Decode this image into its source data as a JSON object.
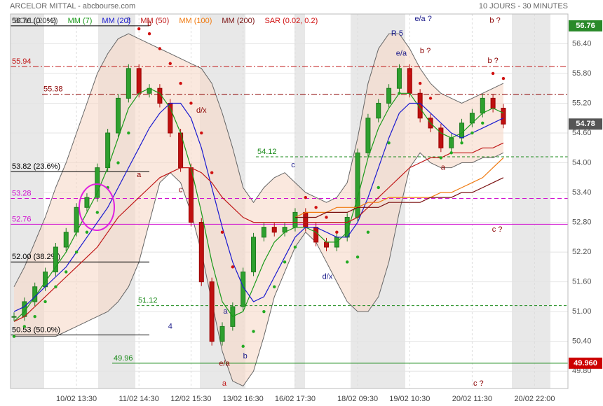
{
  "chart_data": {
    "type": "candlestick",
    "title": "ARCELOR MITTAL - abcbourse.com",
    "subtitle": "10 JOURS - 30 MINUTES",
    "categories": [
      null,
      null,
      null,
      null,
      null,
      null,
      "10/02 13:30",
      null,
      null,
      null,
      null,
      null,
      "11/02 14:30",
      null,
      null,
      null,
      null,
      "12/02 15:30",
      null,
      null,
      null,
      null,
      "13/02 16:30",
      null,
      null,
      null,
      null,
      "16/02 17:30",
      null,
      null,
      null,
      null,
      null,
      "18/02 09:30",
      null,
      null,
      null,
      null,
      "19/02 10:30",
      null,
      null,
      null,
      null,
      null,
      "20/02 11:30",
      null,
      null,
      null,
      null,
      null,
      "20/02 22:00",
      null
    ],
    "price": [
      50.9,
      51.2,
      51.5,
      51.8,
      52.3,
      52.6,
      53.1,
      53.3,
      53.9,
      54.6,
      55.3,
      55.9,
      55.4,
      55.5,
      55.2,
      54.6,
      53.9,
      52.8,
      51.6,
      50.4,
      50.7,
      51.1,
      51.8,
      52.5,
      52.7,
      52.6,
      52.7,
      53.0,
      52.7,
      52.4,
      52.3,
      52.5,
      52.9,
      54.2,
      54.9,
      55.2,
      55.5,
      55.9,
      55.4,
      54.9,
      54.7,
      54.3,
      54.5,
      54.8,
      55.0,
      55.3,
      55.1,
      54.78,
      null,
      null,
      null,
      null
    ],
    "series": [
      {
        "name": "BOLL (20, 2)",
        "color": "#666666",
        "upper": [
          51.5,
          51.9,
          52.4,
          52.9,
          53.5,
          54.0,
          54.6,
          55.2,
          55.8,
          56.2,
          56.5,
          56.6,
          56.5,
          56.4,
          56.3,
          56.2,
          56.1,
          56.0,
          55.9,
          55.6,
          55.0,
          54.3,
          53.5,
          53.2,
          53.5,
          53.7,
          53.8,
          53.6,
          53.4,
          53.3,
          53.2,
          53.3,
          53.6,
          54.5,
          55.6,
          56.3,
          56.6,
          56.6,
          56.3,
          55.9,
          55.6,
          55.4,
          55.3,
          55.2,
          55.3,
          55.4,
          55.5,
          55.6,
          null,
          null,
          null,
          null
        ],
        "lower": [
          50.5,
          50.5,
          50.5,
          50.5,
          50.5,
          50.6,
          50.7,
          50.8,
          50.9,
          51.0,
          51.2,
          51.5,
          52.0,
          52.8,
          53.6,
          53.8,
          53.6,
          53.0,
          52.2,
          51.2,
          50.2,
          49.6,
          49.5,
          49.8,
          50.5,
          51.3,
          51.8,
          52.3,
          52.6,
          52.4,
          52.0,
          51.6,
          51.2,
          51.0,
          51.0,
          51.3,
          52.0,
          53.0,
          53.9,
          54.2,
          54.0,
          53.9,
          53.9,
          54.0,
          54.0,
          54.1,
          54.1,
          54.2,
          null,
          null,
          null,
          null
        ]
      },
      {
        "name": "MM (7)",
        "color": "#1a9a1a",
        "values": [
          50.8,
          51.0,
          51.3,
          51.6,
          51.9,
          52.2,
          52.6,
          53.0,
          53.4,
          53.9,
          54.5,
          55.1,
          55.4,
          55.5,
          55.4,
          55.1,
          54.6,
          53.9,
          53.0,
          52.0,
          51.2,
          50.9,
          51.0,
          51.5,
          52.0,
          52.4,
          52.6,
          52.7,
          52.7,
          52.6,
          52.4,
          52.4,
          52.6,
          53.3,
          54.1,
          54.7,
          55.1,
          55.4,
          55.4,
          55.1,
          54.8,
          54.6,
          54.5,
          54.6,
          54.8,
          55.0,
          55.1,
          55.0,
          null,
          null,
          null,
          null
        ]
      },
      {
        "name": "MM (20)",
        "color": "#1a1ad0",
        "values": [
          51.0,
          51.1,
          51.3,
          51.5,
          51.7,
          51.9,
          52.2,
          52.5,
          52.8,
          53.1,
          53.5,
          53.9,
          54.3,
          54.7,
          55.0,
          55.2,
          55.2,
          54.9,
          54.3,
          53.5,
          52.7,
          52.0,
          51.5,
          51.2,
          51.3,
          51.7,
          52.1,
          52.5,
          52.7,
          52.7,
          52.6,
          52.5,
          52.5,
          52.8,
          53.3,
          53.9,
          54.5,
          55.0,
          55.2,
          55.2,
          55.0,
          54.8,
          54.6,
          54.5,
          54.6,
          54.7,
          54.8,
          54.9,
          null,
          null,
          null,
          null
        ]
      },
      {
        "name": "MM (50)",
        "color": "#c01818",
        "values": [
          50.8,
          50.9,
          51.1,
          51.3,
          51.5,
          51.7,
          51.9,
          52.1,
          52.3,
          52.6,
          52.9,
          53.1,
          53.3,
          53.5,
          53.7,
          53.8,
          53.9,
          53.9,
          53.8,
          53.6,
          53.3,
          53.1,
          52.9,
          52.8,
          52.8,
          52.8,
          52.8,
          52.8,
          52.8,
          52.8,
          52.8,
          52.8,
          52.8,
          52.9,
          53.1,
          53.3,
          53.5,
          53.7,
          53.9,
          54.0,
          54.1,
          54.1,
          54.2,
          54.2,
          54.2,
          54.3,
          54.3,
          54.4,
          null,
          null,
          null,
          null
        ]
      },
      {
        "name": "MM (100)",
        "color": "#f07a10",
        "values": [
          null,
          null,
          null,
          null,
          null,
          null,
          null,
          null,
          null,
          null,
          null,
          null,
          null,
          null,
          null,
          null,
          null,
          null,
          null,
          null,
          null,
          null,
          null,
          null,
          null,
          null,
          null,
          52.9,
          53.0,
          53.0,
          53.0,
          53.1,
          53.1,
          53.1,
          53.2,
          53.2,
          53.3,
          53.3,
          53.3,
          53.3,
          53.3,
          53.4,
          53.4,
          53.5,
          53.6,
          53.7,
          53.9,
          54.1,
          null,
          null,
          null,
          null
        ]
      },
      {
        "name": "MM (200)",
        "color": "#7a1010",
        "values": [
          null,
          null,
          null,
          null,
          null,
          null,
          null,
          null,
          null,
          null,
          null,
          null,
          null,
          null,
          null,
          null,
          null,
          null,
          null,
          null,
          null,
          null,
          null,
          null,
          null,
          null,
          null,
          52.9,
          52.9,
          52.9,
          53.0,
          53.0,
          53.0,
          53.1,
          53.1,
          53.1,
          53.2,
          53.2,
          53.2,
          53.2,
          53.3,
          53.3,
          53.3,
          53.4,
          53.4,
          53.5,
          53.6,
          53.7,
          null,
          null,
          null,
          null
        ]
      },
      {
        "name": "SAR (0.02, 0.2)",
        "color": "#d01010",
        "values": [
          50.5,
          50.7,
          50.9,
          51.2,
          51.5,
          51.8,
          52.2,
          52.6,
          53.0,
          53.5,
          54.0,
          54.6,
          56.7,
          56.6,
          56.3,
          56.0,
          55.6,
          55.2,
          54.6,
          53.8,
          52.6,
          51.9,
          50.3,
          50.6,
          51.0,
          51.5,
          52.0,
          52.3,
          53.3,
          53.1,
          52.9,
          52.6,
          52.0,
          52.1,
          52.6,
          53.5,
          54.4,
          55.4,
          55.8,
          55.6,
          55.3,
          54.1,
          54.2,
          54.4,
          54.6,
          54.8,
          55.8,
          55.7,
          null,
          null,
          null,
          null
        ]
      }
    ],
    "ylim": [
      49.45,
      57.21
    ],
    "yticks": [
      {
        "value": 49.8,
        "label": "49.80"
      },
      {
        "value": 50.4,
        "label": "50.40"
      },
      {
        "value": 51,
        "label": "51.00"
      },
      {
        "value": 51.6,
        "label": "51.60"
      },
      {
        "value": 52.2,
        "label": "52.20"
      },
      {
        "value": 52.8,
        "label": "52.80"
      },
      {
        "value": 53.4,
        "label": "53.40"
      },
      {
        "value": 54,
        "label": "54.00"
      },
      {
        "value": 54.6,
        "label": "54.60"
      },
      {
        "value": 55.2,
        "label": "55.20"
      },
      {
        "value": 55.8,
        "label": "55.80"
      },
      {
        "value": 56.4,
        "label": "56.40"
      }
    ],
    "grid": true,
    "levels": [
      {
        "value": 56.76,
        "label": "56.76  (0.0%)",
        "color": "#000000"
      },
      {
        "value": 55.94,
        "label": "55.94",
        "color": "#c01818"
      },
      {
        "value": 55.38,
        "label": "55.38",
        "color": "#8b0000"
      },
      {
        "value": 54.12,
        "label": "54.12",
        "color": "#1a8a1a"
      },
      {
        "value": 53.82,
        "label": "53.82  (23.6%)",
        "color": "#000000"
      },
      {
        "value": 53.28,
        "label": "53.28",
        "color": "#d010d0"
      },
      {
        "value": 52.76,
        "label": "52.76",
        "color": "#d010d0"
      },
      {
        "value": 52.0,
        "label": "52.00  (38.2%)",
        "color": "#000000"
      },
      {
        "value": 51.12,
        "label": "51.12",
        "color": "#1a8a1a"
      },
      {
        "value": 50.53,
        "label": "50.53  (50.0%)",
        "color": "#000000"
      },
      {
        "value": 49.96,
        "label": "49.96",
        "color": "#1a8a1a"
      }
    ],
    "badges": [
      {
        "value": 56.76,
        "label": "56.76",
        "color": "#2a8a2a"
      },
      {
        "value": 54.78,
        "label": "54.78",
        "color": "#555555"
      },
      {
        "value": 49.96,
        "label": "49.960",
        "color": "#cc0000"
      }
    ],
    "annotations": [
      {
        "text": "3",
        "x": 11,
        "y": 56.86,
        "color": "#1a1a8a",
        "size": 18
      },
      {
        "text": "b",
        "x": 13,
        "y": 56.8,
        "color": "#8b0000",
        "size": 12
      },
      {
        "text": "a",
        "x": 12,
        "y": 53.75,
        "color": "#8b0000",
        "size": 12
      },
      {
        "text": "c",
        "x": 16,
        "y": 53.45,
        "color": "#8b0000",
        "size": 12
      },
      {
        "text": "d/x",
        "x": 18,
        "y": 55.05,
        "color": "#8b0000",
        "size": 12
      },
      {
        "text": "4",
        "x": 15,
        "y": 50.7,
        "color": "#1a1a8a",
        "size": 18
      },
      {
        "text": "a",
        "x": 20.3,
        "y": 51.0,
        "color": "#1a1a8a",
        "size": 12
      },
      {
        "text": "e/a",
        "x": 20.2,
        "y": 49.95,
        "color": "#8b0000",
        "size": 12
      },
      {
        "text": "b",
        "x": 22.2,
        "y": 50.1,
        "color": "#1a1a8a",
        "size": 12
      },
      {
        "text": "a",
        "x": 20.2,
        "y": 49.55,
        "color": "#c01818",
        "size": 14
      },
      {
        "text": "c",
        "x": 26.8,
        "y": 53.95,
        "color": "#1a1a8a",
        "size": 12
      },
      {
        "text": "d/x",
        "x": 30.1,
        "y": 51.7,
        "color": "#1a1a8a",
        "size": 12
      },
      {
        "text": "R 5",
        "x": 36.8,
        "y": 56.6,
        "color": "#1a1a8a",
        "size": 18
      },
      {
        "text": "e/a ?",
        "x": 39.3,
        "y": 56.9,
        "color": "#1a1a8a",
        "size": 11
      },
      {
        "text": "e/a",
        "x": 37.2,
        "y": 56.2,
        "color": "#1a1a8a",
        "size": 11
      },
      {
        "text": "b ?",
        "x": 39.5,
        "y": 56.25,
        "color": "#8b0000",
        "size": 14
      },
      {
        "text": "b ?",
        "x": 46.2,
        "y": 56.86,
        "color": "#8b0000",
        "size": 14
      },
      {
        "text": "b ?",
        "x": 46,
        "y": 56.05,
        "color": "#8b0000",
        "size": 11
      },
      {
        "text": "a",
        "x": 41.2,
        "y": 53.9,
        "color": "#8b0000",
        "size": 12
      },
      {
        "text": "c ?",
        "x": 46.4,
        "y": 52.65,
        "color": "#8b0000",
        "size": 12
      },
      {
        "text": "c ?",
        "x": 44.6,
        "y": 49.55,
        "color": "#8b0000",
        "size": 14
      }
    ]
  }
}
